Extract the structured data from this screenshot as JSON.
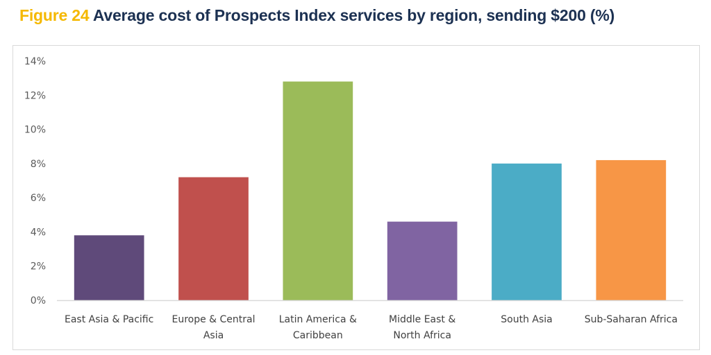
{
  "header": {
    "figure_label": "Figure 24",
    "title": "Average cost of Prospects Index services by region, sending $200 (%)"
  },
  "chart_data": {
    "type": "bar",
    "title": "Figure 24 Average cost of Prospects Index services by region, sending $200 (%)",
    "xlabel": "",
    "ylabel": "",
    "categories": [
      [
        "East Asia & Pacific"
      ],
      [
        "Europe & Central",
        "Asia"
      ],
      [
        "Latin America &",
        "Caribbean"
      ],
      [
        "Middle East &",
        "North Africa"
      ],
      [
        "South Asia"
      ],
      [
        "Sub-Saharan Africa"
      ]
    ],
    "category_names": [
      "East Asia & Pacific",
      "Europe & Central Asia",
      "Latin America & Caribbean",
      "Middle East & North Africa",
      "South Asia",
      "Sub-Saharan Africa"
    ],
    "values": [
      3.8,
      7.2,
      12.8,
      4.6,
      8.0,
      8.2
    ],
    "colors": [
      "#5f4a7a",
      "#c0504d",
      "#9bbb59",
      "#8064a2",
      "#4bacc6",
      "#f79646"
    ],
    "ylim": [
      0,
      14
    ],
    "yticks": [
      0,
      2,
      4,
      6,
      8,
      10,
      12,
      14
    ],
    "ytick_labels": [
      "0%",
      "2%",
      "4%",
      "6%",
      "8%",
      "10%",
      "12%",
      "14%"
    ],
    "grid": false,
    "legend": "none",
    "axis_color": "#d9d9d9"
  }
}
